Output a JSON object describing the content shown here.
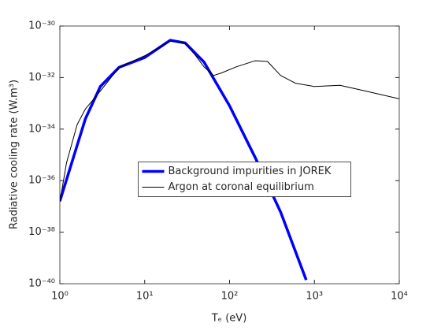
{
  "chart_data": {
    "type": "line",
    "xlabel": "Tₑ (eV)",
    "ylabel": "Radiative cooling rate (W.m³)",
    "xscale": "log",
    "yscale": "log",
    "xlim": [
      1,
      10000
    ],
    "ylim": [
      1e-40,
      1e-30
    ],
    "xticks": [
      {
        "value": 1,
        "label": "10⁰"
      },
      {
        "value": 10,
        "label": "10¹"
      },
      {
        "value": 100,
        "label": "10²"
      },
      {
        "value": 1000,
        "label": "10³"
      },
      {
        "value": 10000,
        "label": "10⁴"
      }
    ],
    "yticks": [
      {
        "value": 1e-40,
        "label": "10⁻⁴⁰"
      },
      {
        "value": 1e-38,
        "label": "10⁻³⁸"
      },
      {
        "value": 1e-36,
        "label": "10⁻³⁶"
      },
      {
        "value": 1e-34,
        "label": "10⁻³⁴"
      },
      {
        "value": 1e-32,
        "label": "10⁻³²"
      },
      {
        "value": 1e-30,
        "label": "10⁻³⁰"
      }
    ],
    "legend": "center",
    "series": [
      {
        "name": "Background impurities in JOREK",
        "color": "#0000ff",
        "width": 3.5,
        "x": [
          1,
          2,
          3,
          5,
          10,
          20,
          30,
          50,
          100,
          200,
          400,
          800
        ],
        "values": [
          1.6e-37,
          2.5e-34,
          4.5e-33,
          2.5e-32,
          6e-32,
          2.8e-31,
          2.2e-31,
          4e-32,
          8e-34,
          8e-36,
          6e-38,
          1.4e-40
        ]
      },
      {
        "name": "Argon at coronal equilibrium",
        "color": "#000000",
        "width": 1,
        "x": [
          1,
          1.2,
          1.6,
          2,
          3,
          5,
          10,
          20,
          30,
          40,
          50,
          65,
          80,
          120,
          200,
          280,
          400,
          600,
          1000,
          2000,
          4000,
          10000
        ],
        "values": [
          1.5e-37,
          5e-36,
          1.5e-34,
          6e-34,
          3e-33,
          2.5e-32,
          7e-32,
          2.6e-31,
          2.1e-31,
          7e-32,
          2.6e-32,
          1.2e-32,
          1.5e-32,
          2.6e-32,
          4.5e-32,
          4.2e-32,
          1.2e-32,
          6e-33,
          4.5e-33,
          5e-33,
          3e-33,
          1.5e-33
        ]
      }
    ]
  }
}
